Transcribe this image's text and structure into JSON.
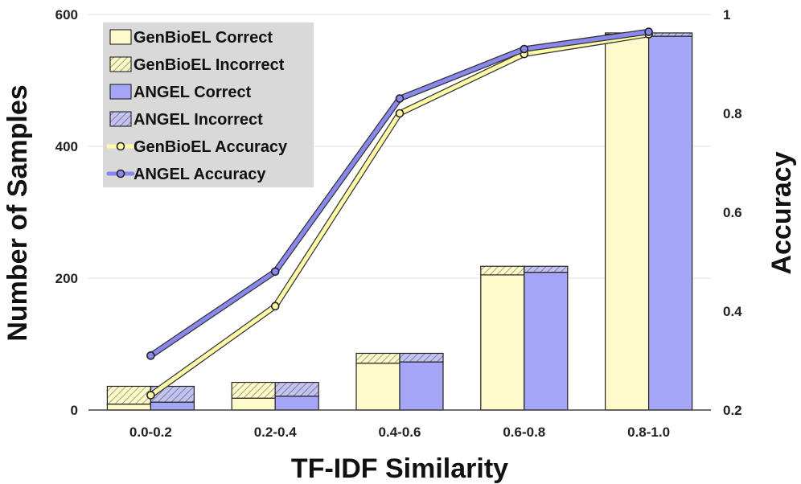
{
  "chart_data": {
    "type": "bar",
    "subtype": "stacked-bar-with-line-overlay",
    "title": "",
    "xlabel": "TF-IDF Similarity",
    "ylabel": "Number of Samples",
    "y2label": "Accuracy",
    "ylim": [
      0,
      600
    ],
    "y2lim": [
      0.2,
      1.0
    ],
    "yticks": [
      0,
      200,
      400,
      600
    ],
    "y2ticks": [
      "0.2",
      "0.4",
      "0.6",
      "0.8",
      "1"
    ],
    "y2tick_values": [
      0.2,
      0.4,
      0.6,
      0.8,
      1.0
    ],
    "grid": "horizontal",
    "categories": [
      "0.0-0.2",
      "0.2-0.4",
      "0.4-0.6",
      "0.6-0.8",
      "0.8-1.0"
    ],
    "bar_series": [
      {
        "name": "GenBioEL Correct",
        "group": "GenBioEL",
        "values": [
          9,
          18,
          71,
          205,
          570
        ],
        "color": "#fffacc",
        "hatch": false
      },
      {
        "name": "GenBioEL Incorrect",
        "group": "GenBioEL",
        "values": [
          27,
          24,
          15,
          13,
          2
        ],
        "color": "#fffacc",
        "hatch": true
      },
      {
        "name": "ANGEL Correct",
        "group": "ANGEL",
        "values": [
          12,
          21,
          73,
          209,
          567
        ],
        "color": "#a6a6f7",
        "hatch": false
      },
      {
        "name": "ANGEL Incorrect",
        "group": "ANGEL",
        "values": [
          24,
          21,
          13,
          9,
          5
        ],
        "color": "#c3c3ee",
        "hatch": true
      }
    ],
    "line_series": [
      {
        "name": "GenBioEL Accuracy",
        "values": [
          0.23,
          0.41,
          0.8,
          0.92,
          0.96
        ],
        "color": "#fffaa8"
      },
      {
        "name": "ANGEL Accuracy",
        "values": [
          0.31,
          0.48,
          0.83,
          0.93,
          0.965
        ],
        "color": "#8888ee"
      }
    ],
    "legend": {
      "position": "top-left",
      "entries": [
        {
          "label": "GenBioEL Correct",
          "kind": "bar",
          "series": "GenBioEL Correct"
        },
        {
          "label": "GenBioEL Incorrect",
          "kind": "bar",
          "series": "GenBioEL Incorrect"
        },
        {
          "label": "ANGEL Correct",
          "kind": "bar",
          "series": "ANGEL Correct"
        },
        {
          "label": "ANGEL Incorrect",
          "kind": "bar",
          "series": "ANGEL Incorrect"
        },
        {
          "label": "GenBioEL Accuracy",
          "kind": "line",
          "series": "GenBioEL Accuracy"
        },
        {
          "label": "ANGEL Accuracy",
          "kind": "line",
          "series": "ANGEL Accuracy"
        }
      ]
    }
  }
}
